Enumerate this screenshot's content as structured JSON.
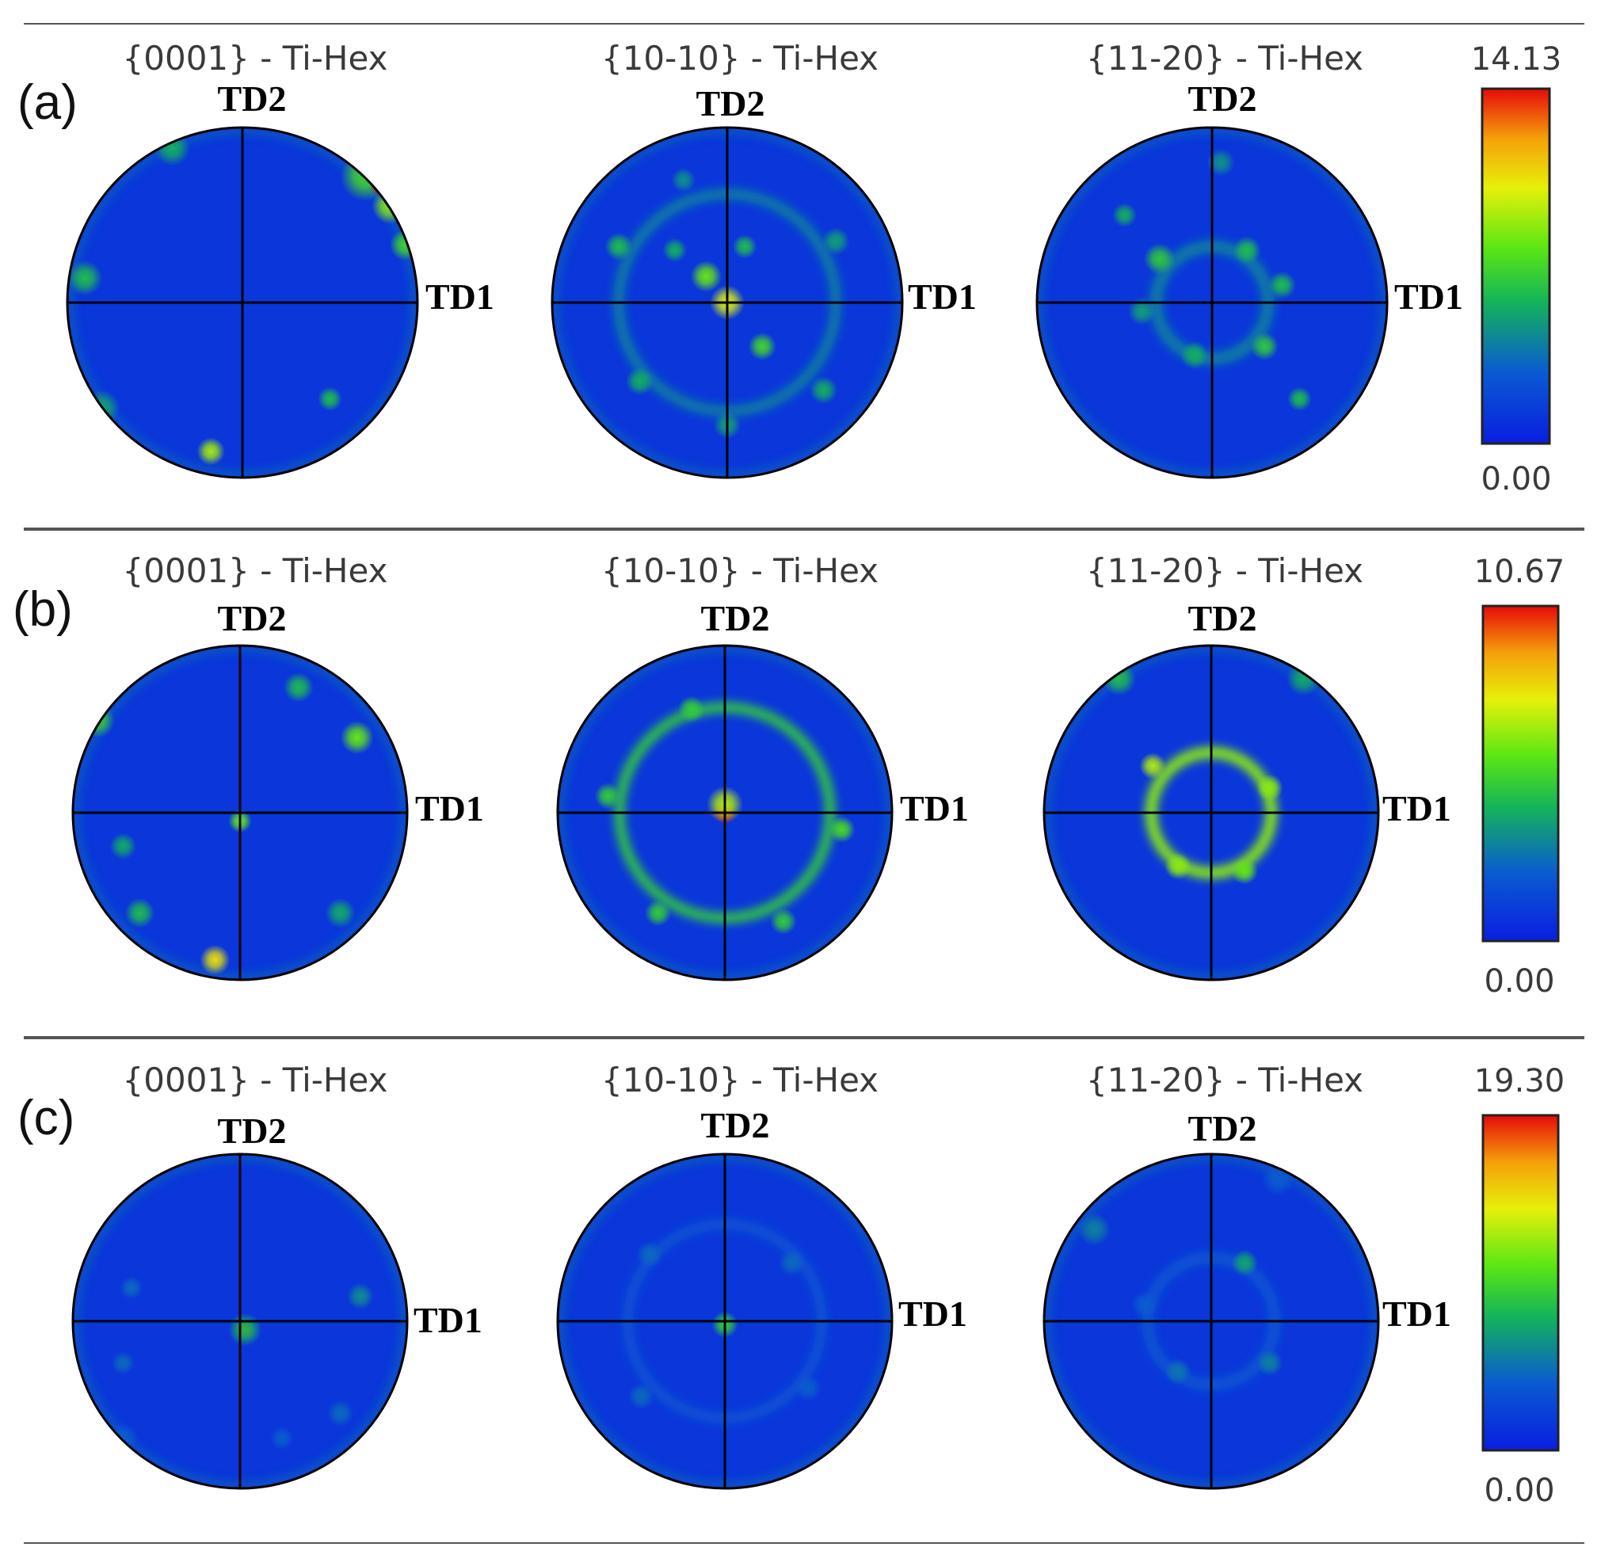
{
  "chart_data": {
    "type": "heatmap",
    "figure_kind": "pole figures",
    "colormap": [
      "#0a1ee0",
      "#0a5ad2",
      "#14b45a",
      "#5ae614",
      "#e6f00a",
      "#f5a00a",
      "#e60a0a"
    ],
    "rows": [
      {
        "label": "(a)",
        "colorbar": {
          "max": "14.13",
          "min": "0.00",
          "vmax": 14.13,
          "vmin": 0.0
        },
        "figures": [
          {
            "title": "{0001} - Ti-Hex",
            "y_axis_label": "TD2",
            "x_axis_label": "TD1",
            "spots": [
              {
                "x": 0.7,
                "y": 0.72,
                "intensity": 7.0,
                "spread": 0.14
              },
              {
                "x": 0.84,
                "y": 0.55,
                "intensity": 8.5,
                "spread": 0.1
              },
              {
                "x": 0.78,
                "y": 0.66,
                "intensity": 14.0,
                "spread": 0.05
              },
              {
                "x": 0.93,
                "y": 0.33,
                "intensity": 7.0,
                "spread": 0.09
              },
              {
                "x": -0.9,
                "y": 0.14,
                "intensity": 6.0,
                "spread": 0.1
              },
              {
                "x": -0.18,
                "y": -0.85,
                "intensity": 9.0,
                "spread": 0.08
              },
              {
                "x": 0.5,
                "y": -0.55,
                "intensity": 6.0,
                "spread": 0.07
              },
              {
                "x": -0.8,
                "y": -0.6,
                "intensity": 5.0,
                "spread": 0.1
              },
              {
                "x": -0.4,
                "y": 0.88,
                "intensity": 5.5,
                "spread": 0.1
              }
            ]
          },
          {
            "title": "{10-10} - Ti-Hex",
            "y_axis_label": "TD2",
            "x_axis_label": "TD1",
            "spots": [
              {
                "x": 0.0,
                "y": 0.0,
                "intensity": 10.0,
                "spread": 0.1
              },
              {
                "x": -0.12,
                "y": 0.15,
                "intensity": 8.0,
                "spread": 0.09
              },
              {
                "x": 0.2,
                "y": -0.25,
                "intensity": 7.0,
                "spread": 0.08
              },
              {
                "x": 0.1,
                "y": 0.32,
                "intensity": 6.0,
                "spread": 0.07
              },
              {
                "x": -0.3,
                "y": 0.3,
                "intensity": 5.5,
                "spread": 0.07
              },
              {
                "x": -0.62,
                "y": 0.32,
                "intensity": 6.0,
                "spread": 0.08
              },
              {
                "x": 0.62,
                "y": 0.35,
                "intensity": 5.0,
                "spread": 0.08
              },
              {
                "x": -0.5,
                "y": -0.45,
                "intensity": 5.5,
                "spread": 0.08
              },
              {
                "x": 0.55,
                "y": -0.5,
                "intensity": 5.5,
                "spread": 0.08
              },
              {
                "x": 0.0,
                "y": -0.7,
                "intensity": 5.0,
                "spread": 0.08
              },
              {
                "x": -0.25,
                "y": 0.7,
                "intensity": 4.5,
                "spread": 0.07
              }
            ],
            "rings": [
              {
                "radius": 0.62,
                "intensity": 4.0,
                "width": 0.06
              }
            ]
          },
          {
            "title": "{11-20} - Ti-Hex",
            "y_axis_label": "TD2",
            "x_axis_label": "TD1",
            "spots": [
              {
                "x": -0.3,
                "y": 0.25,
                "intensity": 6.5,
                "spread": 0.09
              },
              {
                "x": 0.2,
                "y": 0.3,
                "intensity": 6.0,
                "spread": 0.08
              },
              {
                "x": 0.4,
                "y": 0.1,
                "intensity": 6.0,
                "spread": 0.08
              },
              {
                "x": 0.3,
                "y": -0.25,
                "intensity": 6.5,
                "spread": 0.08
              },
              {
                "x": -0.1,
                "y": -0.3,
                "intensity": 5.5,
                "spread": 0.08
              },
              {
                "x": -0.4,
                "y": -0.05,
                "intensity": 5.0,
                "spread": 0.08
              },
              {
                "x": 0.5,
                "y": -0.55,
                "intensity": 6.0,
                "spread": 0.07
              },
              {
                "x": -0.5,
                "y": 0.5,
                "intensity": 5.5,
                "spread": 0.07
              },
              {
                "x": 0.05,
                "y": 0.8,
                "intensity": 4.5,
                "spread": 0.08
              }
            ],
            "rings": [
              {
                "radius": 0.32,
                "intensity": 4.0,
                "width": 0.07
              }
            ]
          }
        ]
      },
      {
        "label": "(b)",
        "colorbar": {
          "max": "10.67",
          "min": "0.00",
          "vmax": 10.67,
          "vmin": 0.0
        },
        "figures": [
          {
            "title": "{0001} - Ti-Hex",
            "y_axis_label": "TD2",
            "x_axis_label": "TD1",
            "spots": [
              {
                "x": 0.0,
                "y": -0.05,
                "intensity": 6.0,
                "spread": 0.07
              },
              {
                "x": -0.15,
                "y": -0.88,
                "intensity": 8.0,
                "spread": 0.09
              },
              {
                "x": 0.7,
                "y": 0.45,
                "intensity": 6.0,
                "spread": 0.1
              },
              {
                "x": -0.85,
                "y": 0.55,
                "intensity": 5.0,
                "spread": 0.1
              },
              {
                "x": 0.35,
                "y": 0.75,
                "intensity": 4.5,
                "spread": 0.09
              },
              {
                "x": 0.6,
                "y": -0.6,
                "intensity": 4.0,
                "spread": 0.09
              },
              {
                "x": -0.6,
                "y": -0.6,
                "intensity": 4.5,
                "spread": 0.09
              },
              {
                "x": -0.7,
                "y": -0.2,
                "intensity": 4.0,
                "spread": 0.08
              }
            ]
          },
          {
            "title": "{10-10} - Ti-Hex",
            "y_axis_label": "TD2",
            "x_axis_label": "TD1",
            "spots": [
              {
                "x": 0.0,
                "y": 0.0,
                "intensity": 10.6,
                "spread": 0.07
              },
              {
                "x": 0.0,
                "y": 0.05,
                "intensity": 7.0,
                "spread": 0.11
              },
              {
                "x": -0.7,
                "y": 0.1,
                "intensity": 5.0,
                "spread": 0.08
              },
              {
                "x": 0.7,
                "y": -0.1,
                "intensity": 5.5,
                "spread": 0.08
              },
              {
                "x": -0.4,
                "y": -0.6,
                "intensity": 5.0,
                "spread": 0.08
              },
              {
                "x": 0.35,
                "y": -0.65,
                "intensity": 5.0,
                "spread": 0.08
              },
              {
                "x": -0.2,
                "y": 0.62,
                "intensity": 5.0,
                "spread": 0.08
              }
            ],
            "rings": [
              {
                "radius": 0.63,
                "intensity": 5.0,
                "width": 0.06
              }
            ]
          },
          {
            "title": "{11-20} - Ti-Hex",
            "y_axis_label": "TD2",
            "x_axis_label": "TD1",
            "spots": [
              {
                "x": -0.35,
                "y": 0.28,
                "intensity": 7.0,
                "spread": 0.08
              },
              {
                "x": 0.35,
                "y": 0.15,
                "intensity": 6.5,
                "spread": 0.08
              },
              {
                "x": -0.2,
                "y": -0.32,
                "intensity": 6.5,
                "spread": 0.08
              },
              {
                "x": 0.2,
                "y": -0.35,
                "intensity": 6.0,
                "spread": 0.08
              },
              {
                "x": -0.55,
                "y": 0.8,
                "intensity": 4.5,
                "spread": 0.1
              },
              {
                "x": 0.55,
                "y": 0.8,
                "intensity": 4.0,
                "spread": 0.1
              }
            ],
            "rings": [
              {
                "radius": 0.36,
                "intensity": 6.5,
                "width": 0.07
              }
            ]
          }
        ]
      },
      {
        "label": "(c)",
        "colorbar": {
          "max": "19.30",
          "min": "0.00",
          "vmax": 19.3,
          "vmin": 0.0
        },
        "figures": [
          {
            "title": "{0001} - Ti-Hex",
            "y_axis_label": "TD2",
            "x_axis_label": "TD1",
            "spots": [
              {
                "x": 0.03,
                "y": -0.05,
                "intensity": 19.0,
                "spread": 0.05
              },
              {
                "x": 0.03,
                "y": -0.05,
                "intensity": 8.0,
                "spread": 0.1
              },
              {
                "x": 0.72,
                "y": 0.15,
                "intensity": 6.0,
                "spread": 0.08
              },
              {
                "x": -0.65,
                "y": 0.2,
                "intensity": 4.5,
                "spread": 0.07
              },
              {
                "x": -0.7,
                "y": -0.25,
                "intensity": 4.5,
                "spread": 0.07
              },
              {
                "x": 0.6,
                "y": -0.55,
                "intensity": 4.5,
                "spread": 0.08
              },
              {
                "x": 0.25,
                "y": -0.7,
                "intensity": 4.0,
                "spread": 0.07
              },
              {
                "x": -0.7,
                "y": -0.7,
                "intensity": 4.0,
                "spread": 0.09
              }
            ]
          },
          {
            "title": "{10-10} - Ti-Hex",
            "y_axis_label": "TD2",
            "x_axis_label": "TD1",
            "spots": [
              {
                "x": 0.0,
                "y": -0.02,
                "intensity": 9.0,
                "spread": 0.08
              },
              {
                "x": -0.45,
                "y": 0.4,
                "intensity": 4.5,
                "spread": 0.08
              },
              {
                "x": 0.4,
                "y": 0.35,
                "intensity": 4.5,
                "spread": 0.08
              },
              {
                "x": -0.5,
                "y": -0.45,
                "intensity": 4.5,
                "spread": 0.08
              },
              {
                "x": 0.5,
                "y": -0.4,
                "intensity": 4.0,
                "spread": 0.08
              }
            ],
            "rings": [
              {
                "radius": 0.58,
                "intensity": 3.5,
                "width": 0.06
              }
            ]
          },
          {
            "title": "{11-20} - Ti-Hex",
            "y_axis_label": "TD2",
            "x_axis_label": "TD1",
            "spots": [
              {
                "x": 0.2,
                "y": 0.35,
                "intensity": 7.0,
                "spread": 0.08
              },
              {
                "x": 0.35,
                "y": -0.25,
                "intensity": 5.5,
                "spread": 0.08
              },
              {
                "x": -0.2,
                "y": -0.3,
                "intensity": 5.0,
                "spread": 0.08
              },
              {
                "x": -0.7,
                "y": 0.55,
                "intensity": 5.5,
                "spread": 0.1
              },
              {
                "x": -0.4,
                "y": 0.1,
                "intensity": 4.0,
                "spread": 0.08
              },
              {
                "x": 0.4,
                "y": 0.85,
                "intensity": 4.0,
                "spread": 0.1
              }
            ],
            "rings": [
              {
                "radius": 0.38,
                "intensity": 3.5,
                "width": 0.07
              }
            ]
          }
        ]
      }
    ]
  }
}
